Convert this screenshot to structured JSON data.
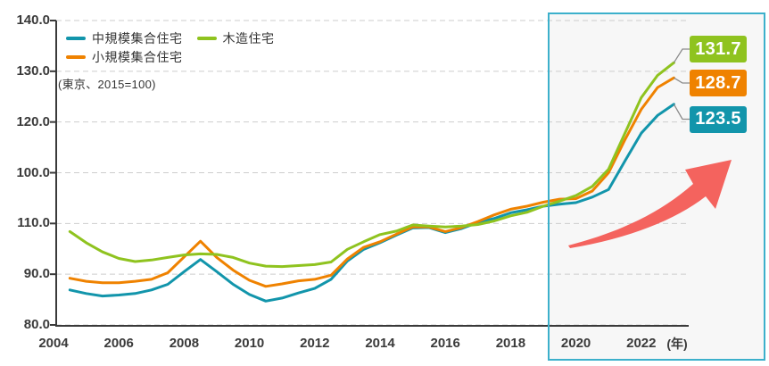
{
  "chart": {
    "note": "(東京、2015=100)",
    "x_axis_unit": "(年)",
    "y_tick_labels": [
      "140.0",
      "130.0",
      "120.0",
      "100.0",
      "110.0",
      "90.0",
      "80.0"
    ],
    "x_tick_labels": [
      "2004",
      "2006",
      "2008",
      "2010",
      "2012",
      "2014",
      "2016",
      "2018",
      "2020",
      "2022"
    ],
    "legend": {
      "rows": [
        [
          {
            "label": "中規模集合住宅",
            "color": "#1295ab"
          },
          {
            "label": "木造住宅",
            "color": "#8fc31f"
          }
        ],
        [
          {
            "label": "小規模集合住宅",
            "color": "#ef8200"
          }
        ]
      ]
    },
    "callouts": [
      {
        "value": "131.7",
        "series": "木造住宅",
        "color": "#8fc31f"
      },
      {
        "value": "128.7",
        "series": "小規模集合住宅",
        "color": "#ef8200"
      },
      {
        "value": "123.5",
        "series": "中規模集合住宅",
        "color": "#1295ab"
      }
    ],
    "colors": {
      "medium_apartment": "#1295ab",
      "small_apartment": "#ef8200",
      "wooden_house": "#8fc31f",
      "highlight_border": "#3cb0cb",
      "highlight_fill": "#f7f7f7",
      "trend_arrow": "#f4635e",
      "grid": "#cdcdcd",
      "axis": "#3a3a3a"
    }
  },
  "chart_data": {
    "type": "line",
    "title": "",
    "note": "(東京、2015=100)",
    "x_unit": "年",
    "x": [
      2004.5,
      2005,
      2005.5,
      2006,
      2006.5,
      2007,
      2007.5,
      2008,
      2008.5,
      2009,
      2009.5,
      2010,
      2010.5,
      2011,
      2011.5,
      2012,
      2012.5,
      2013,
      2013.5,
      2014,
      2014.5,
      2015,
      2015.5,
      2016,
      2016.5,
      2017,
      2017.5,
      2018,
      2018.5,
      2019,
      2019.5,
      2020,
      2020.5,
      2021,
      2021.5,
      2022,
      2022.5,
      2023
    ],
    "series": [
      {
        "name": "中規模集合住宅",
        "key": "medium-apartment",
        "color": "#1295ab",
        "end_label": 123.5,
        "values": [
          86.9,
          86.2,
          85.7,
          85.9,
          86.2,
          86.9,
          88.0,
          90.5,
          92.9,
          90.5,
          88.0,
          86.0,
          84.7,
          85.3,
          86.3,
          87.2,
          89.0,
          92.6,
          94.9,
          96.2,
          97.7,
          99.1,
          99.2,
          98.2,
          99.0,
          100.2,
          101.0,
          102.1,
          102.7,
          103.4,
          103.8,
          104.1,
          105.2,
          106.7,
          112.3,
          117.8,
          121.3,
          123.5
        ]
      },
      {
        "name": "小規模集合住宅",
        "key": "small-apartment",
        "color": "#ef8200",
        "end_label": 128.7,
        "values": [
          89.2,
          88.6,
          88.3,
          88.3,
          88.6,
          89.0,
          90.3,
          93.4,
          96.5,
          93.3,
          90.8,
          88.8,
          87.6,
          88.1,
          88.7,
          89.0,
          89.8,
          93.0,
          95.3,
          96.4,
          97.9,
          99.3,
          99.3,
          98.4,
          99.2,
          100.4,
          101.7,
          102.8,
          103.4,
          104.2,
          104.8,
          104.9,
          106.4,
          110.0,
          116.5,
          122.5,
          126.8,
          128.7
        ]
      },
      {
        "name": "木造住宅",
        "key": "wooden-house",
        "color": "#8fc31f",
        "end_label": 131.7,
        "values": [
          98.4,
          96.2,
          94.4,
          93.1,
          92.5,
          92.8,
          93.3,
          93.8,
          94.0,
          93.9,
          93.3,
          92.2,
          91.6,
          91.5,
          91.7,
          91.9,
          92.4,
          94.9,
          96.4,
          97.8,
          98.5,
          99.7,
          99.5,
          99.3,
          99.5,
          99.8,
          100.5,
          101.5,
          102.2,
          103.4,
          104.4,
          105.5,
          107.3,
          110.7,
          117.8,
          124.8,
          129.2,
          131.7
        ]
      }
    ],
    "y_axis": {
      "range": [
        80,
        140
      ],
      "gridline_step": 10,
      "grid": "horizontal dashed",
      "displayed_labels_top_to_bottom": [
        "140.0",
        "130.0",
        "120.0",
        "100.0",
        "110.0",
        "90.0",
        "80.0"
      ]
    },
    "x_axis": {
      "tick_years": [
        2004,
        2006,
        2008,
        2010,
        2012,
        2014,
        2016,
        2018,
        2020,
        2022
      ],
      "unit_label": "(年)"
    },
    "legend_position": "top-left inside plot",
    "annotations": [
      {
        "type": "highlight-box",
        "from_year": 2019.3,
        "to": "right edge",
        "border_color": "#3cb0cb"
      },
      {
        "type": "rising-trend-arrow",
        "color": "#f4635e",
        "location": "lower right inside highlight box"
      },
      {
        "type": "end-value-labels",
        "values": {
          "木造住宅": 131.7,
          "小規模集合住宅": 128.7,
          "中規模集合住宅": 123.5
        }
      }
    ]
  }
}
